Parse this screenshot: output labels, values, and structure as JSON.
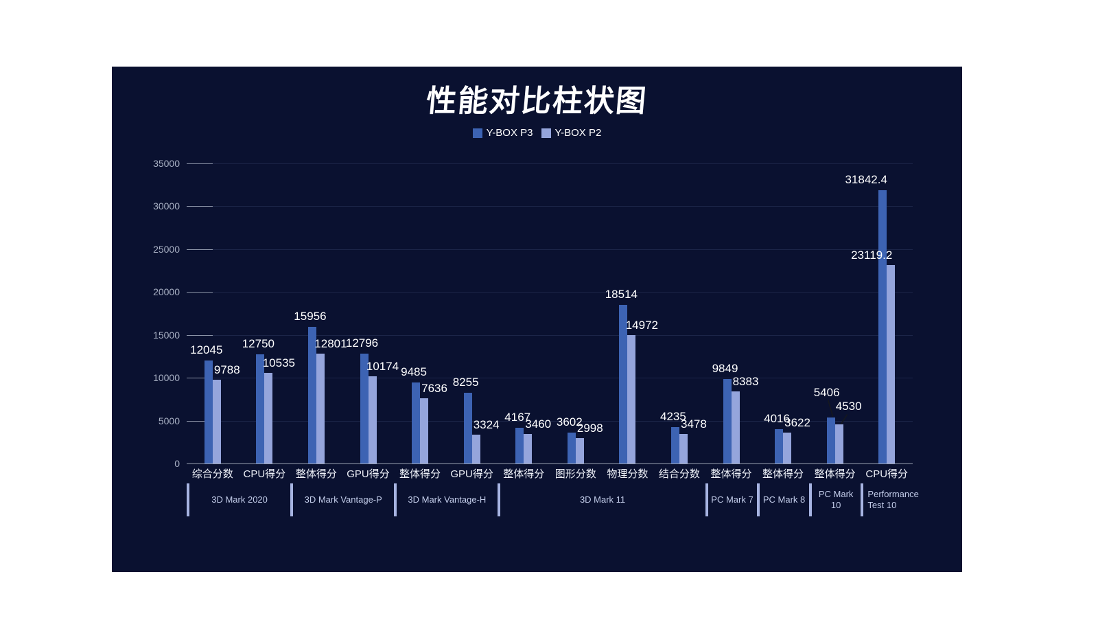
{
  "title": "性能对比柱状图",
  "panel": {
    "background": "#0a1130",
    "page_background": "#ffffff"
  },
  "legend": [
    {
      "label": "Y-BOX P3",
      "color": "#3d63b3"
    },
    {
      "label": "Y-BOX P2",
      "color": "#95a5dc"
    }
  ],
  "chart_data": {
    "type": "bar",
    "title": "性能对比柱状图",
    "categories": [
      "综合分数",
      "CPU得分",
      "整体得分",
      "GPU得分",
      "整体得分",
      "GPU得分",
      "整体得分",
      "图形分数",
      "物理分数",
      "结合分数",
      "整体得分",
      "整体得分",
      "整体得分",
      "CPU得分"
    ],
    "groups": [
      {
        "label": "3D Mark 2020",
        "span": 2
      },
      {
        "label": "3D Mark  Vantage-P",
        "span": 2
      },
      {
        "label": "3D Mark  Vantage-H",
        "span": 2
      },
      {
        "label": "3D Mark 11",
        "span": 4
      },
      {
        "label": "PC Mark 7",
        "span": 1
      },
      {
        "label": "PC Mark 8",
        "span": 1
      },
      {
        "label": "PC Mark 10",
        "span": 1
      },
      {
        "label": "Performance Test 10",
        "span": 1
      }
    ],
    "series": [
      {
        "name": "Y-BOX P3",
        "color": "#3d63b3",
        "values": [
          12045,
          12750,
          15956,
          12796,
          9485,
          8255,
          4167,
          3602,
          18514,
          4235,
          9849,
          4016,
          5406,
          31842.4
        ]
      },
      {
        "name": "Y-BOX P2",
        "color": "#95a5dc",
        "values": [
          9788,
          10535,
          12801,
          10174,
          7636,
          3324,
          3460,
          2998,
          14972,
          3478,
          8383,
          3622,
          4530,
          23119.2
        ]
      }
    ],
    "y_axis": {
      "min": 0,
      "max": 35000,
      "step": 5000,
      "ticks": [
        "0",
        "5000",
        "10000",
        "15000",
        "20000",
        "25000",
        "30000",
        "35000"
      ]
    },
    "grid": true,
    "legend_position": "top",
    "value_labels": true,
    "colors": {
      "background": "#0a1130",
      "gridline": "rgba(125,145,200,0.16)",
      "axis_line": "#9aa2b2",
      "y_label": "#a9b1c4",
      "x_label": "#eef1f8",
      "group_label": "#c3cdea",
      "group_separator": "#a7b4e2",
      "value_label": "#ffffff"
    }
  }
}
